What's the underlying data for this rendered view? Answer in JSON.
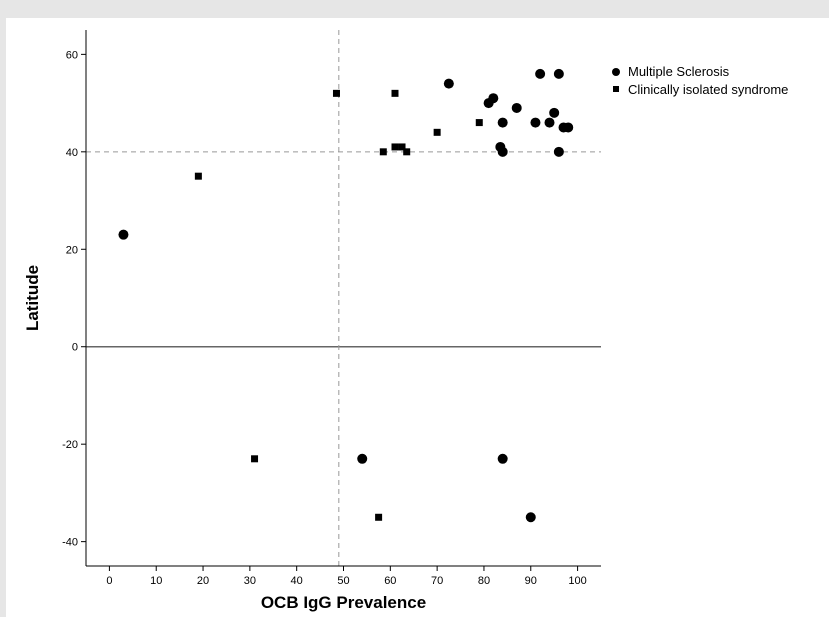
{
  "chart_data": {
    "type": "scatter",
    "title": "",
    "xlabel": "OCB IgG Prevalence",
    "ylabel": "Latitude",
    "xlim": [
      -5,
      105
    ],
    "ylim": [
      -45,
      65
    ],
    "xticks": [
      0,
      10,
      20,
      30,
      40,
      50,
      60,
      70,
      80,
      90,
      100
    ],
    "yticks": [
      -40,
      -20,
      0,
      20,
      40,
      60
    ],
    "reference_lines": {
      "x": 49,
      "y": 40,
      "zero_line_y": 0
    },
    "grid": false,
    "legend_position": "top-right",
    "series": [
      {
        "name": "Multiple Sclerosis",
        "marker": "circle",
        "points": [
          [
            3,
            23
          ],
          [
            72.5,
            54
          ],
          [
            81,
            50
          ],
          [
            82,
            51
          ],
          [
            84,
            46
          ],
          [
            87,
            49
          ],
          [
            83.5,
            41
          ],
          [
            84,
            40
          ],
          [
            91,
            46
          ],
          [
            92,
            56
          ],
          [
            94,
            46
          ],
          [
            95,
            48
          ],
          [
            96,
            56
          ],
          [
            96,
            40
          ],
          [
            97,
            45
          ],
          [
            98,
            45
          ],
          [
            54,
            -23
          ],
          [
            84,
            -23
          ],
          [
            90,
            -35
          ]
        ]
      },
      {
        "name": "Clinically isolated syndrome",
        "marker": "square",
        "points": [
          [
            19,
            35
          ],
          [
            31,
            -23
          ],
          [
            48.5,
            52
          ],
          [
            57.5,
            -35
          ],
          [
            58.5,
            40
          ],
          [
            61,
            41
          ],
          [
            61,
            52
          ],
          [
            62.5,
            41
          ],
          [
            63.5,
            40
          ],
          [
            70,
            44
          ],
          [
            79,
            46
          ]
        ]
      }
    ]
  }
}
